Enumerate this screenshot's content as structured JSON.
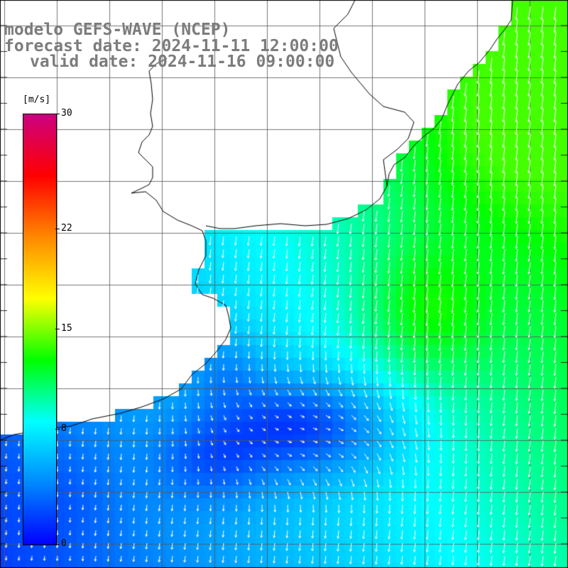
{
  "title": {
    "model": "modelo GEFS-WAVE (NCEP)",
    "forecast": "forecast date: 2024-11-11 12:00:00",
    "valid": "valid date: 2024-11-16 09:00:00"
  },
  "colorbar": {
    "unit": "[m/s]",
    "min": 0,
    "max": 30,
    "ticks": [
      {
        "label": "30",
        "value": 30
      },
      {
        "label": "22",
        "value": 22
      },
      {
        "label": "15",
        "value": 15
      },
      {
        "label": "8",
        "value": 8
      },
      {
        "label": "0",
        "value": 0
      }
    ],
    "color_stops": [
      "#0000ff",
      "#0088ff",
      "#00ffff",
      "#00ff00",
      "#ffff00",
      "#ff8800",
      "#ff0000",
      "#cc0080"
    ]
  },
  "map": {
    "variable": "wind speed and direction",
    "land_color": "#ffffff",
    "grid_color": "#555555",
    "vector_color": "#ffffff"
  }
}
